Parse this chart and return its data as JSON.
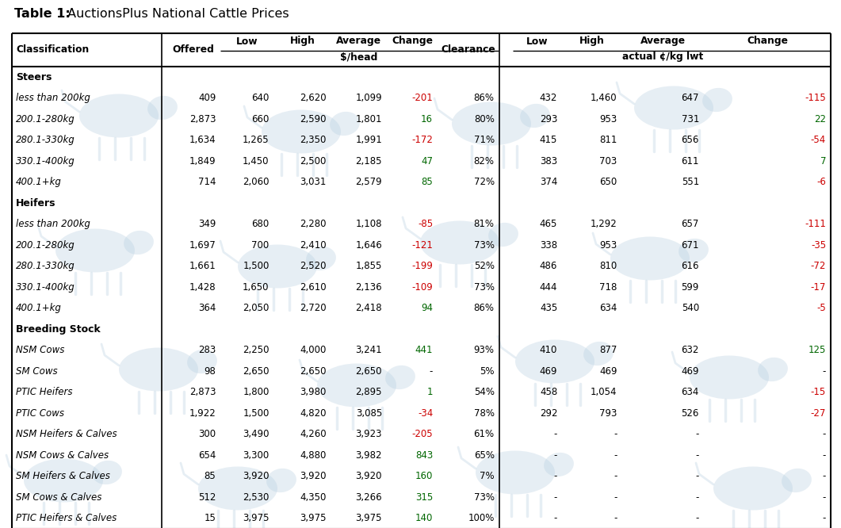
{
  "title_bold": "Table 1:",
  "title_regular": " AuctionsPlus National Cattle Prices",
  "rows": [
    {
      "cat": "Steers",
      "type": "section"
    },
    {
      "cat": "less than 200kg",
      "type": "data",
      "offered": "409",
      "low": "640",
      "high": "2,620",
      "avg": "1,099",
      "change": "-201",
      "change_color": "#cc0000",
      "clearance": "86%",
      "low2": "432",
      "high2": "1,460",
      "avg2": "647",
      "change2": "-115",
      "change2_color": "#cc0000"
    },
    {
      "cat": "200.1-280kg",
      "type": "data",
      "offered": "2,873",
      "low": "660",
      "high": "2,590",
      "avg": "1,801",
      "change": "16",
      "change_color": "#006600",
      "clearance": "80%",
      "low2": "293",
      "high2": "953",
      "avg2": "731",
      "change2": "22",
      "change2_color": "#006600"
    },
    {
      "cat": "280.1-330kg",
      "type": "data",
      "offered": "1,634",
      "low": "1,265",
      "high": "2,350",
      "avg": "1,991",
      "change": "-172",
      "change_color": "#cc0000",
      "clearance": "71%",
      "low2": "415",
      "high2": "811",
      "avg2": "656",
      "change2": "-54",
      "change2_color": "#cc0000"
    },
    {
      "cat": "330.1-400kg",
      "type": "data",
      "offered": "1,849",
      "low": "1,450",
      "high": "2,500",
      "avg": "2,185",
      "change": "47",
      "change_color": "#006600",
      "clearance": "82%",
      "low2": "383",
      "high2": "703",
      "avg2": "611",
      "change2": "7",
      "change2_color": "#006600"
    },
    {
      "cat": "400.1+kg",
      "type": "data",
      "offered": "714",
      "low": "2,060",
      "high": "3,031",
      "avg": "2,579",
      "change": "85",
      "change_color": "#006600",
      "clearance": "72%",
      "low2": "374",
      "high2": "650",
      "avg2": "551",
      "change2": "-6",
      "change2_color": "#cc0000"
    },
    {
      "cat": "Heifers",
      "type": "section"
    },
    {
      "cat": "less than 200kg",
      "type": "data",
      "offered": "349",
      "low": "680",
      "high": "2,280",
      "avg": "1,108",
      "change": "-85",
      "change_color": "#cc0000",
      "clearance": "81%",
      "low2": "465",
      "high2": "1,292",
      "avg2": "657",
      "change2": "-111",
      "change2_color": "#cc0000"
    },
    {
      "cat": "200.1-280kg",
      "type": "data",
      "offered": "1,697",
      "low": "700",
      "high": "2,410",
      "avg": "1,646",
      "change": "-121",
      "change_color": "#cc0000",
      "clearance": "73%",
      "low2": "338",
      "high2": "953",
      "avg2": "671",
      "change2": "-35",
      "change2_color": "#cc0000"
    },
    {
      "cat": "280.1-330kg",
      "type": "data",
      "offered": "1,661",
      "low": "1,500",
      "high": "2,520",
      "avg": "1,855",
      "change": "-199",
      "change_color": "#cc0000",
      "clearance": "52%",
      "low2": "486",
      "high2": "810",
      "avg2": "616",
      "change2": "-72",
      "change2_color": "#cc0000"
    },
    {
      "cat": "330.1-400kg",
      "type": "data",
      "offered": "1,428",
      "low": "1,650",
      "high": "2,610",
      "avg": "2,136",
      "change": "-109",
      "change_color": "#cc0000",
      "clearance": "73%",
      "low2": "444",
      "high2": "718",
      "avg2": "599",
      "change2": "-17",
      "change2_color": "#cc0000"
    },
    {
      "cat": "400.1+kg",
      "type": "data",
      "offered": "364",
      "low": "2,050",
      "high": "2,720",
      "avg": "2,418",
      "change": "94",
      "change_color": "#006600",
      "clearance": "86%",
      "low2": "435",
      "high2": "634",
      "avg2": "540",
      "change2": "-5",
      "change2_color": "#cc0000"
    },
    {
      "cat": "Breeding Stock",
      "type": "section"
    },
    {
      "cat": "NSM Cows",
      "type": "data",
      "offered": "283",
      "low": "2,250",
      "high": "4,000",
      "avg": "3,241",
      "change": "441",
      "change_color": "#006600",
      "clearance": "93%",
      "low2": "410",
      "high2": "877",
      "avg2": "632",
      "change2": "125",
      "change2_color": "#006600"
    },
    {
      "cat": "SM Cows",
      "type": "data",
      "offered": "98",
      "low": "2,650",
      "high": "2,650",
      "avg": "2,650",
      "change": "-",
      "change_color": "#000000",
      "clearance": "5%",
      "low2": "469",
      "high2": "469",
      "avg2": "469",
      "change2": "-",
      "change2_color": "#000000"
    },
    {
      "cat": "PTIC Heifers",
      "type": "data",
      "offered": "2,873",
      "low": "1,800",
      "high": "3,980",
      "avg": "2,895",
      "change": "1",
      "change_color": "#006600",
      "clearance": "54%",
      "low2": "458",
      "high2": "1,054",
      "avg2": "634",
      "change2": "-15",
      "change2_color": "#cc0000"
    },
    {
      "cat": "PTIC Cows",
      "type": "data",
      "offered": "1,922",
      "low": "1,500",
      "high": "4,820",
      "avg": "3,085",
      "change": "-34",
      "change_color": "#cc0000",
      "clearance": "78%",
      "low2": "292",
      "high2": "793",
      "avg2": "526",
      "change2": "-27",
      "change2_color": "#cc0000"
    },
    {
      "cat": "NSM Heifers & Calves",
      "type": "data",
      "offered": "300",
      "low": "3,490",
      "high": "4,260",
      "avg": "3,923",
      "change": "-205",
      "change_color": "#cc0000",
      "clearance": "61%",
      "low2": "-",
      "high2": "-",
      "avg2": "-",
      "change2": "-",
      "change2_color": "#000000"
    },
    {
      "cat": "NSM Cows & Calves",
      "type": "data",
      "offered": "654",
      "low": "3,300",
      "high": "4,880",
      "avg": "3,982",
      "change": "843",
      "change_color": "#006600",
      "clearance": "65%",
      "low2": "-",
      "high2": "-",
      "avg2": "-",
      "change2": "-",
      "change2_color": "#000000"
    },
    {
      "cat": "SM Heifers & Calves",
      "type": "data",
      "offered": "85",
      "low": "3,920",
      "high": "3,920",
      "avg": "3,920",
      "change": "160",
      "change_color": "#006600",
      "clearance": "7%",
      "low2": "-",
      "high2": "-",
      "avg2": "-",
      "change2": "-",
      "change2_color": "#000000"
    },
    {
      "cat": "SM Cows & Calves",
      "type": "data",
      "offered": "512",
      "low": "2,530",
      "high": "4,350",
      "avg": "3,266",
      "change": "315",
      "change_color": "#006600",
      "clearance": "73%",
      "low2": "-",
      "high2": "-",
      "avg2": "-",
      "change2": "-",
      "change2_color": "#000000"
    },
    {
      "cat": "PTIC Heifers & Calves",
      "type": "data",
      "offered": "15",
      "low": "3,975",
      "high": "3,975",
      "avg": "3,975",
      "change": "140",
      "change_color": "#006600",
      "clearance": "100%",
      "low2": "-",
      "high2": "-",
      "avg2": "-",
      "change2": "-",
      "change2_color": "#000000"
    }
  ],
  "bg_color": "#ffffff",
  "fig_width": 10.61,
  "fig_height": 6.66,
  "dpi": 100
}
